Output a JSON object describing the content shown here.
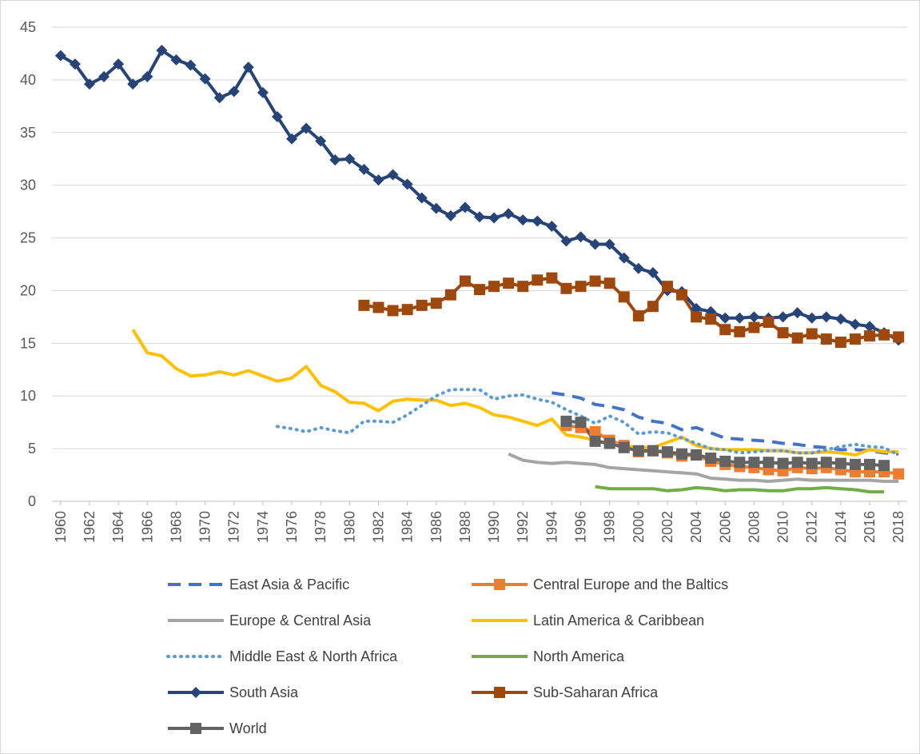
{
  "chart_data": {
    "type": "line",
    "x": [
      1960,
      1961,
      1962,
      1963,
      1964,
      1965,
      1966,
      1967,
      1968,
      1969,
      1970,
      1971,
      1972,
      1973,
      1974,
      1975,
      1976,
      1977,
      1978,
      1979,
      1980,
      1981,
      1982,
      1983,
      1984,
      1985,
      1986,
      1987,
      1988,
      1989,
      1990,
      1991,
      1992,
      1993,
      1994,
      1995,
      1996,
      1997,
      1998,
      1999,
      2000,
      2001,
      2002,
      2003,
      2004,
      2005,
      2006,
      2007,
      2008,
      2009,
      2010,
      2011,
      2012,
      2013,
      2014,
      2015,
      2016,
      2017,
      2018
    ],
    "xlim": [
      1959.4,
      2018.6
    ],
    "xticks": [
      1960,
      1962,
      1964,
      1966,
      1968,
      1970,
      1972,
      1974,
      1976,
      1978,
      1980,
      1982,
      1984,
      1986,
      1988,
      1990,
      1992,
      1994,
      1996,
      1998,
      2000,
      2002,
      2004,
      2006,
      2008,
      2010,
      2012,
      2014,
      2016,
      2018
    ],
    "ylim": [
      0,
      45
    ],
    "yticks": [
      0,
      5,
      10,
      15,
      20,
      25,
      30,
      35,
      40,
      45
    ],
    "grid": true,
    "series": [
      {
        "name": "East Asia & Pacific",
        "color": "#4472c4",
        "dash": "dash",
        "marker": "none",
        "values": [
          null,
          null,
          null,
          null,
          null,
          null,
          null,
          null,
          null,
          null,
          null,
          null,
          null,
          null,
          null,
          null,
          null,
          null,
          null,
          null,
          null,
          null,
          null,
          null,
          null,
          null,
          null,
          null,
          null,
          null,
          null,
          null,
          null,
          null,
          10.3,
          10.1,
          9.8,
          9.2,
          9.0,
          8.7,
          8.0,
          7.6,
          7.4,
          6.8,
          7.0,
          6.5,
          6.0,
          5.9,
          5.8,
          5.7,
          5.5,
          5.4,
          5.2,
          5.1,
          4.9,
          4.9,
          4.8,
          4.6,
          4.5
        ]
      },
      {
        "name": "Central Europe and the Baltics",
        "color": "#ed7d31",
        "dash": "solid",
        "marker": "square",
        "values": [
          null,
          null,
          null,
          null,
          null,
          null,
          null,
          null,
          null,
          null,
          null,
          null,
          null,
          null,
          null,
          null,
          null,
          null,
          null,
          null,
          null,
          null,
          null,
          null,
          null,
          null,
          null,
          null,
          null,
          null,
          null,
          null,
          null,
          null,
          null,
          7.2,
          7.0,
          6.6,
          5.8,
          5.3,
          4.7,
          4.8,
          4.6,
          4.3,
          4.4,
          3.8,
          3.5,
          3.3,
          3.2,
          3.0,
          2.9,
          3.2,
          3.1,
          3.2,
          3.0,
          2.8,
          2.8,
          2.8,
          2.6
        ]
      },
      {
        "name": "Europe & Central Asia",
        "color": "#a5a5a5",
        "dash": "solid",
        "marker": "none",
        "values": [
          null,
          null,
          null,
          null,
          null,
          null,
          null,
          null,
          null,
          null,
          null,
          null,
          null,
          null,
          null,
          null,
          null,
          null,
          null,
          null,
          null,
          null,
          null,
          null,
          null,
          null,
          null,
          null,
          null,
          null,
          null,
          4.5,
          3.9,
          3.7,
          3.6,
          3.7,
          3.6,
          3.5,
          3.2,
          3.1,
          3.0,
          2.9,
          2.8,
          2.7,
          2.6,
          2.2,
          2.1,
          2.0,
          2.0,
          1.9,
          2.0,
          2.1,
          2.0,
          2.0,
          2.0,
          2.0,
          2.0,
          1.9,
          1.9
        ]
      },
      {
        "name": "Latin America & Caribbean",
        "color": "#ffc000",
        "dash": "solid",
        "marker": "none",
        "values": [
          null,
          null,
          null,
          null,
          null,
          16.3,
          14.1,
          13.8,
          12.6,
          11.9,
          12.0,
          12.3,
          12.0,
          12.4,
          11.9,
          11.4,
          11.7,
          12.8,
          11.0,
          10.4,
          9.4,
          9.3,
          8.6,
          9.5,
          9.7,
          9.6,
          9.6,
          9.1,
          9.3,
          8.9,
          8.2,
          8.0,
          7.6,
          7.2,
          7.8,
          6.3,
          6.1,
          5.8,
          5.5,
          5.3,
          5.1,
          5.1,
          5.6,
          6.1,
          5.3,
          5.0,
          4.9,
          4.9,
          4.9,
          4.8,
          4.8,
          4.6,
          4.6,
          4.7,
          4.6,
          4.4,
          4.9,
          4.7,
          4.7
        ]
      },
      {
        "name": "Middle East & North Africa",
        "color": "#5b9bd5",
        "dash": "dot",
        "marker": "none",
        "values": [
          null,
          null,
          null,
          null,
          null,
          null,
          null,
          null,
          null,
          null,
          null,
          null,
          null,
          null,
          null,
          7.1,
          6.9,
          6.6,
          7.0,
          6.7,
          6.5,
          7.6,
          7.6,
          7.5,
          8.2,
          9.1,
          10.0,
          10.6,
          10.6,
          10.6,
          9.7,
          10.0,
          10.1,
          9.7,
          9.4,
          8.7,
          8.1,
          7.4,
          8.1,
          7.5,
          6.4,
          6.6,
          6.5,
          6.0,
          5.5,
          5.0,
          4.9,
          4.6,
          4.7,
          4.8,
          4.8,
          4.6,
          4.6,
          4.9,
          5.2,
          5.4,
          5.2,
          5.1,
          4.4
        ]
      },
      {
        "name": "North America",
        "color": "#70ad47",
        "dash": "solid",
        "marker": "none",
        "values": [
          null,
          null,
          null,
          null,
          null,
          null,
          null,
          null,
          null,
          null,
          null,
          null,
          null,
          null,
          null,
          null,
          null,
          null,
          null,
          null,
          null,
          null,
          null,
          null,
          null,
          null,
          null,
          null,
          null,
          null,
          null,
          null,
          null,
          null,
          null,
          null,
          null,
          1.4,
          1.2,
          1.2,
          1.2,
          1.2,
          1.0,
          1.1,
          1.3,
          1.2,
          1.0,
          1.1,
          1.1,
          1.0,
          1.0,
          1.2,
          1.2,
          1.3,
          1.2,
          1.1,
          0.9,
          0.9,
          null
        ]
      },
      {
        "name": "South Asia",
        "color": "#264478",
        "dash": "solid",
        "marker": "diamond",
        "values": [
          42.3,
          41.5,
          39.6,
          40.3,
          41.5,
          39.6,
          40.3,
          42.8,
          41.9,
          41.4,
          40.1,
          38.3,
          38.9,
          41.2,
          38.8,
          36.5,
          34.4,
          35.4,
          34.2,
          32.4,
          32.5,
          31.5,
          30.5,
          31.0,
          30.1,
          28.8,
          27.8,
          27.1,
          27.9,
          27.0,
          26.9,
          27.3,
          26.7,
          26.6,
          26.1,
          24.7,
          25.1,
          24.4,
          24.4,
          23.1,
          22.1,
          21.7,
          20.0,
          19.9,
          18.3,
          18.0,
          17.4,
          17.4,
          17.5,
          17.4,
          17.5,
          17.9,
          17.4,
          17.5,
          17.3,
          16.8,
          16.6,
          16.0,
          15.3
        ]
      },
      {
        "name": "Sub-Saharan Africa",
        "color": "#9e480e",
        "dash": "solid",
        "marker": "square",
        "values": [
          null,
          null,
          null,
          null,
          null,
          null,
          null,
          null,
          null,
          null,
          null,
          null,
          null,
          null,
          null,
          null,
          null,
          null,
          null,
          null,
          null,
          18.6,
          18.4,
          18.1,
          18.2,
          18.6,
          18.8,
          19.6,
          20.9,
          20.1,
          20.4,
          20.7,
          20.4,
          21.0,
          21.2,
          20.2,
          20.4,
          20.9,
          20.7,
          19.4,
          17.6,
          18.5,
          20.4,
          19.6,
          17.5,
          17.3,
          16.3,
          16.1,
          16.5,
          17.0,
          16.0,
          15.5,
          15.9,
          15.4,
          15.1,
          15.4,
          15.7,
          15.8,
          15.6
        ]
      },
      {
        "name": "World",
        "color": "#636363",
        "dash": "solid",
        "marker": "square",
        "values": [
          null,
          null,
          null,
          null,
          null,
          null,
          null,
          null,
          null,
          null,
          null,
          null,
          null,
          null,
          null,
          null,
          null,
          null,
          null,
          null,
          null,
          null,
          null,
          null,
          null,
          null,
          null,
          null,
          null,
          null,
          null,
          null,
          null,
          null,
          null,
          7.6,
          7.5,
          5.7,
          5.5,
          5.1,
          4.8,
          4.8,
          4.7,
          4.5,
          4.4,
          4.1,
          3.8,
          3.7,
          3.7,
          3.7,
          3.6,
          3.7,
          3.6,
          3.7,
          3.6,
          3.5,
          3.5,
          3.4,
          null
        ]
      }
    ]
  }
}
